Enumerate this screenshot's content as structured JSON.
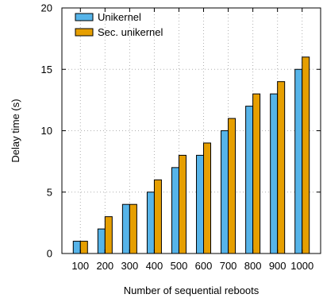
{
  "chart_data": {
    "type": "bar",
    "title": "",
    "xlabel": "Number of sequential reboots",
    "ylabel": "Delay time (s)",
    "categories": [
      "100",
      "200",
      "300",
      "400",
      "500",
      "600",
      "700",
      "800",
      "900",
      "1000"
    ],
    "ylim": [
      0,
      20
    ],
    "yticks": [
      0,
      5,
      10,
      15,
      20
    ],
    "grid": true,
    "legend_position": "top-left",
    "series": [
      {
        "name": "Unikernel",
        "color": "#56b4e9",
        "values": [
          1,
          2,
          4,
          5,
          7,
          8,
          10,
          12,
          13,
          15
        ]
      },
      {
        "name": "Sec. unikernel",
        "color": "#e69f00",
        "values": [
          1,
          3,
          4,
          6,
          8,
          9,
          11,
          13,
          14,
          16
        ]
      }
    ]
  }
}
